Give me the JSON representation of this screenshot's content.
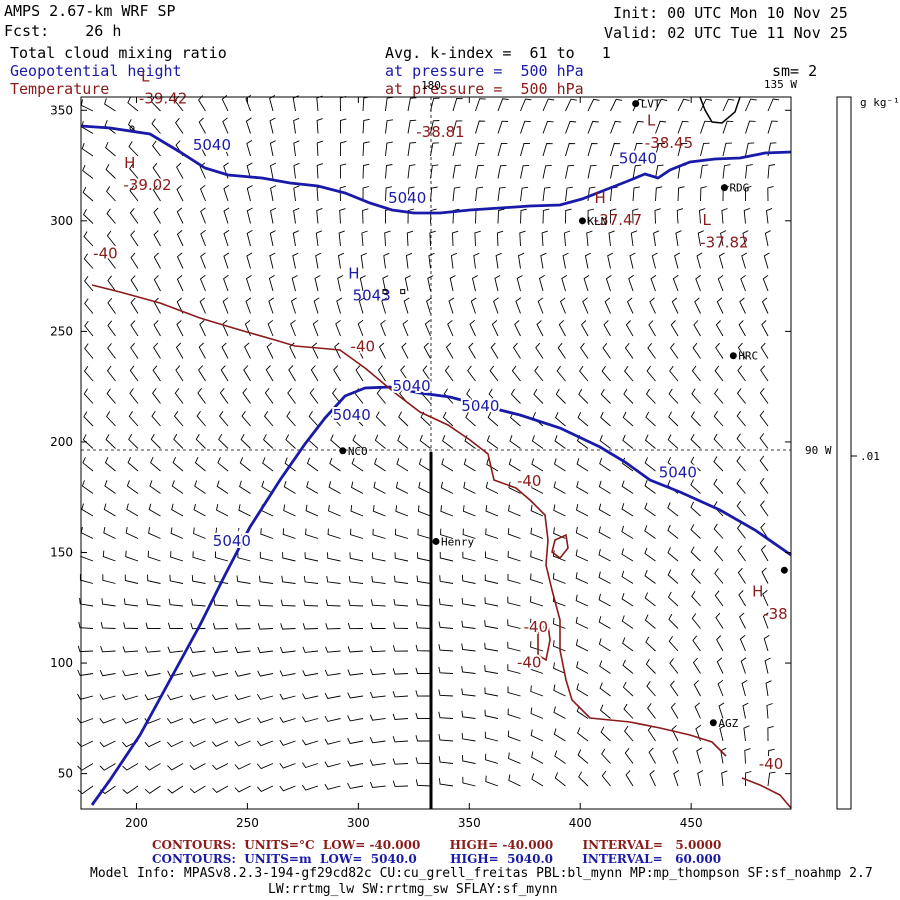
{
  "header": {
    "model": "AMPS 2.67-km WRF SP",
    "fcst": "Fcst:    26 h",
    "init": "Init: 00 UTC Mon 10 Nov 25",
    "valid": "Valid: 02 UTC Tue 11 Nov 25",
    "field1": "Total cloud mixing ratio",
    "field2": "Geopotential height",
    "field3": "Temperature",
    "avg": "Avg. k-index =  61 to   1",
    "pres1": "at pressure =  500 hPa",
    "pres2": "at pressure =  500 hPa",
    "sm": "sm= 2"
  },
  "colorbar": {
    "unit": "g kg⁻¹",
    "tick": ".01"
  },
  "map": {
    "lon_labels": [
      "180",
      "135 W",
      "90 W"
    ],
    "stations": [
      {
        "name": "LVT",
        "x": 425,
        "y": 353
      },
      {
        "name": "RDG",
        "x": 465,
        "y": 315
      },
      {
        "name": "KLN",
        "x": 401,
        "y": 300
      },
      {
        "name": "HRC",
        "x": 469,
        "y": 239
      },
      {
        "name": "NCO",
        "x": 293,
        "y": 196
      },
      {
        "name": "Henry",
        "x": 335,
        "y": 155
      },
      {
        "name": "AGZ",
        "x": 460,
        "y": 73
      },
      {
        "name": "",
        "x": 492,
        "y": 142
      }
    ],
    "extrema": [
      {
        "kind": "L",
        "value": "-39.42",
        "color": "red",
        "x": 212,
        "y": 355
      },
      {
        "kind": "",
        "value": "-38.81",
        "color": "red",
        "x": 337,
        "y": 340
      },
      {
        "kind": "L",
        "value": "-38.45",
        "color": "red",
        "x": 440,
        "y": 335
      },
      {
        "kind": "H",
        "value": "-39.02",
        "color": "red",
        "x": 205,
        "y": 316
      },
      {
        "kind": "H",
        "value": "-37.47",
        "color": "red",
        "x": 417,
        "y": 300
      },
      {
        "kind": "L",
        "value": "-37.82",
        "color": "red",
        "x": 465,
        "y": 290
      },
      {
        "kind": "H",
        "value": "5043",
        "color": "blue",
        "x": 306,
        "y": 266
      },
      {
        "kind": "H",
        "value": "-38",
        "color": "red",
        "x": 488,
        "y": 122
      }
    ],
    "height_labels": [
      {
        "text": "5040",
        "x": 234,
        "y": 332
      },
      {
        "text": "5040",
        "x": 322,
        "y": 308
      },
      {
        "text": "5040",
        "x": 426,
        "y": 326
      },
      {
        "text": "5040",
        "x": 324,
        "y": 223
      },
      {
        "text": "5040",
        "x": 355,
        "y": 214
      },
      {
        "text": "5040",
        "x": 297,
        "y": 210
      },
      {
        "text": "5040",
        "x": 444,
        "y": 184
      },
      {
        "text": "5040",
        "x": 243,
        "y": 153
      }
    ],
    "temp_labels": [
      {
        "text": "-40",
        "x": 186,
        "y": 283
      },
      {
        "text": "-40",
        "x": 302,
        "y": 241
      },
      {
        "text": "-40",
        "x": 377,
        "y": 180
      },
      {
        "text": "-40",
        "x": 380,
        "y": 114
      },
      {
        "text": "-40",
        "x": 377,
        "y": 98
      },
      {
        "text": "-40",
        "x": 486,
        "y": 52
      }
    ]
  },
  "axes": {
    "xticks": [
      200,
      250,
      300,
      350,
      400,
      450
    ],
    "yticks": [
      50,
      100,
      150,
      200,
      250,
      300,
      350
    ],
    "xlim": [
      175,
      495
    ],
    "ylim": [
      34,
      356
    ]
  },
  "footer": {
    "temp_contours": "CONTOURS:  UNITS=°C  LOW= -40.000       HIGH= -40.000       INTERVAL=   5.0000",
    "height_contours": "CONTOURS:  UNITS=m  LOW=  5040.0        HIGH=  5040.0       INTERVAL=   60.000",
    "model_info": "Model Info: MPASv8.2.3-194-gf29cd82c CU:cu_grell_freitas PBL:bl_mynn MP:mp_thompson SF:sf_noahmp 2.7",
    "model_info2": "LW:rrtmg_lw SW:rrtmg_sw SFLAY:sf_mynn"
  },
  "colors": {
    "height": "#1a1aa8",
    "temperature": "#8b1a1a",
    "frame": "#000000"
  }
}
